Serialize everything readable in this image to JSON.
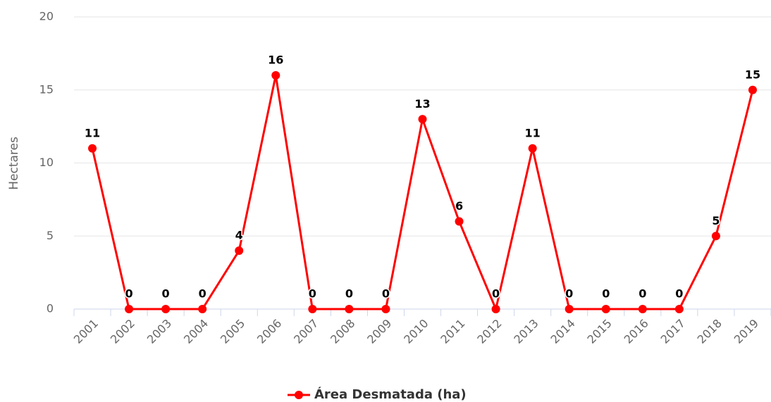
{
  "chart_data": {
    "type": "line",
    "categories": [
      "2001",
      "2002",
      "2003",
      "2004",
      "2005",
      "2006",
      "2007",
      "2008",
      "2009",
      "2010",
      "2011",
      "2012",
      "2013",
      "2014",
      "2015",
      "2016",
      "2017",
      "2018",
      "2019"
    ],
    "series": [
      {
        "name": "Área Desmatada (ha)",
        "color": "#ff0000",
        "values": [
          11,
          0,
          0,
          0,
          4,
          16,
          0,
          0,
          0,
          13,
          6,
          0,
          11,
          0,
          0,
          0,
          0,
          5,
          15
        ]
      }
    ],
    "y_label": "Hectares",
    "ylim": [
      0,
      20
    ],
    "yticks": [
      0,
      5,
      10,
      15,
      20
    ],
    "grid": true,
    "legend": "bottom"
  }
}
